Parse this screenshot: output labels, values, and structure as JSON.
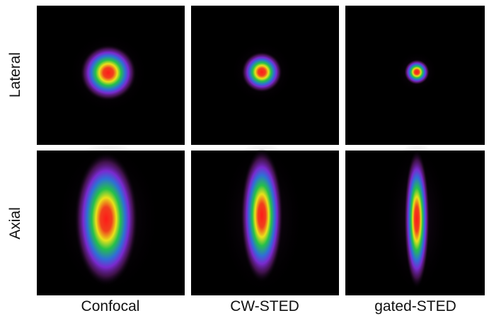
{
  "columns": [
    "Confocal",
    "CW-STED",
    "gated-STED"
  ],
  "rows": [
    "Lateral",
    "Axial"
  ]
}
